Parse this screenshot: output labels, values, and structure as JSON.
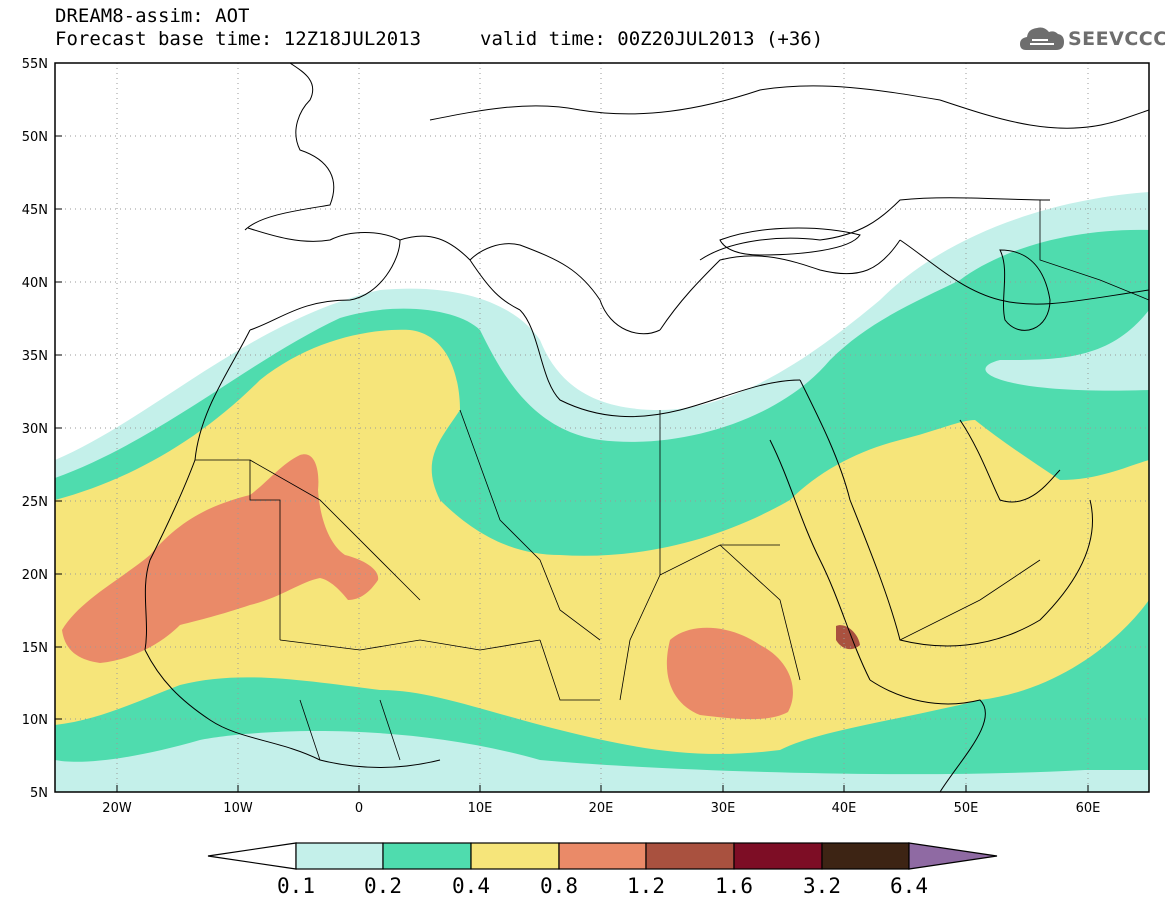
{
  "header": {
    "line1": "DREAM8-assim: AOT",
    "line2": "Forecast base time: 12Z18JUL2013",
    "line3": "valid time: 00Z20JUL2013 (+36)"
  },
  "logo": {
    "text": "SEEVCCC",
    "icon": "cloud-icon"
  },
  "map": {
    "lat_range": [
      5,
      55
    ],
    "lon_range": [
      -25,
      65
    ],
    "lat_labels": [
      "55N",
      "50N",
      "45N",
      "40N",
      "35N",
      "30N",
      "25N",
      "20N",
      "15N",
      "10N",
      "5N"
    ],
    "lon_labels": [
      "20W",
      "10W",
      "0",
      "10E",
      "20E",
      "30E",
      "40E",
      "50E",
      "60E"
    ],
    "grid": "dotted"
  },
  "colorbar": {
    "labels": [
      "0.1",
      "0.2",
      "0.4",
      "0.8",
      "1.2",
      "1.6",
      "3.2",
      "6.4"
    ],
    "colors": [
      "#ffffff",
      "#c4f0ea",
      "#4fdcae",
      "#f6e57a",
      "#ea8a68",
      "#a9513f",
      "#7d0d25",
      "#3d2414",
      "#8f6aa3"
    ]
  }
}
